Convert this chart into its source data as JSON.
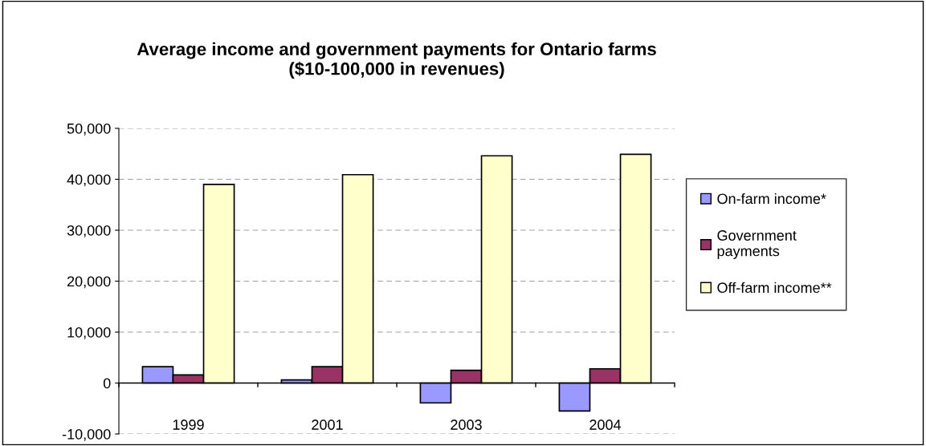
{
  "chart_data": {
    "type": "bar",
    "title": "Average income and government payments for Ontario farms\n($10-100,000 in revenues)",
    "categories": [
      "1999",
      "2001",
      "2003",
      "2004"
    ],
    "series": [
      {
        "name": "On-farm income*",
        "color": "#9999ff",
        "values": [
          3200,
          600,
          -3900,
          -5500
        ]
      },
      {
        "name": "Government\npayments",
        "color": "#993366",
        "values": [
          1600,
          3200,
          2500,
          2800
        ]
      },
      {
        "name": "Off-farm income**",
        "color": "#ffffcc",
        "values": [
          39000,
          40900,
          44600,
          44900
        ]
      }
    ],
    "ylim": [
      -10000,
      50000
    ],
    "yticks": [
      {
        "value": -10000,
        "label": "-10,000"
      },
      {
        "value": 0,
        "label": "0"
      },
      {
        "value": 10000,
        "label": "10,000"
      },
      {
        "value": 20000,
        "label": "20,000"
      },
      {
        "value": 30000,
        "label": "30,000"
      },
      {
        "value": 40000,
        "label": "40,000"
      },
      {
        "value": 50000,
        "label": "50,000"
      }
    ],
    "grid": "y",
    "legend": "right"
  }
}
